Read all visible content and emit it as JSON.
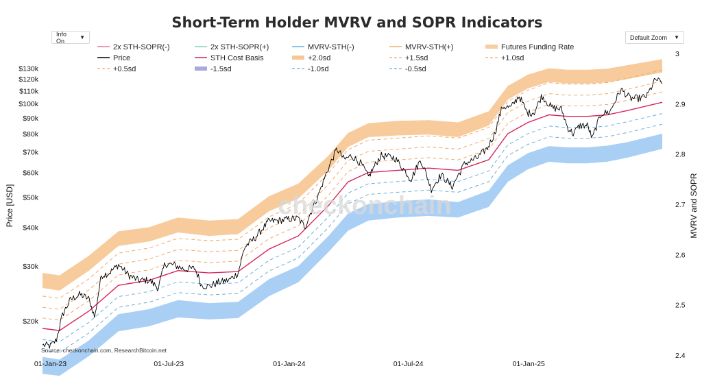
{
  "ui": {
    "info_button": "Info On",
    "zoom_button": "Default Zoom",
    "caret": "▼"
  },
  "chart_data": {
    "type": "line",
    "title": "Short-Term Holder MVRV and SOPR Indicators",
    "ylabel": "Price [USD]",
    "y2label": "MVRV and SOPR",
    "watermark": "checkonchain",
    "source": "Source: checkonchain.com, ResearchBitcoin.net",
    "yscale": "log",
    "ylim": [
      15500,
      145000
    ],
    "y2lim": [
      2.4,
      3.0
    ],
    "y_ticks": [
      {
        "value": 20000,
        "label": "$20k"
      },
      {
        "value": 30000,
        "label": "$30k"
      },
      {
        "value": 40000,
        "label": "$40k"
      },
      {
        "value": 50000,
        "label": "$50k"
      },
      {
        "value": 60000,
        "label": "$60k"
      },
      {
        "value": 70000,
        "label": "$70k"
      },
      {
        "value": 80000,
        "label": "$80k"
      },
      {
        "value": 90000,
        "label": "$90k"
      },
      {
        "value": 100000,
        "label": "$100k"
      },
      {
        "value": 110000,
        "label": "$110k"
      },
      {
        "value": 120000,
        "label": "$120k"
      },
      {
        "value": 130000,
        "label": "$130k"
      }
    ],
    "y2_ticks": [
      {
        "value": 2.4,
        "label": "2.4"
      },
      {
        "value": 2.5,
        "label": "2.5"
      },
      {
        "value": 2.6,
        "label": "2.6"
      },
      {
        "value": 2.7,
        "label": "2.7"
      },
      {
        "value": 2.8,
        "label": "2.8"
      },
      {
        "value": 2.9,
        "label": "2.9"
      },
      {
        "value": 3.0,
        "label": "3"
      }
    ],
    "x_range": [
      "2022-12-20",
      "2025-07-24"
    ],
    "x_ticks": [
      {
        "date": "2023-01-01",
        "label": "01-Jan-23"
      },
      {
        "date": "2023-07-01",
        "label": "01-Jul-23"
      },
      {
        "date": "2024-01-01",
        "label": "01-Jan-24"
      },
      {
        "date": "2024-07-01",
        "label": "01-Jul-24"
      },
      {
        "date": "2025-01-01",
        "label": "01-Jan-25"
      }
    ],
    "legend": [
      {
        "name": "2x STH-SOPR(-)",
        "color": "#e07a9a",
        "style": "line"
      },
      {
        "name": "2x STH-SOPR(+)",
        "color": "#7fd3c3",
        "style": "line"
      },
      {
        "name": "MVRV-STH(-)",
        "color": "#6aaedc",
        "style": "line"
      },
      {
        "name": "MVRV-STH(+)",
        "color": "#f0b070",
        "style": "line"
      },
      {
        "name": "Futures Funding Rate",
        "color": "#f5cfa0",
        "style": "thick"
      },
      {
        "name": "Price",
        "color": "#000000",
        "style": "line"
      },
      {
        "name": "STH Cost Basis",
        "color": "#d6245a",
        "style": "line"
      },
      {
        "name": "+2.0sd",
        "color": "#f5c796",
        "style": "thick"
      },
      {
        "name": "+1.5sd",
        "color": "#f0a868",
        "style": "dash"
      },
      {
        "name": "+1.0sd",
        "color": "#f0a868",
        "style": "dash"
      },
      {
        "name": "+0.5sd",
        "color": "#f0a868",
        "style": "dash"
      },
      {
        "name": "-1.5sd",
        "color": "#a7a9e0",
        "style": "thick"
      },
      {
        "name": "-1.0sd",
        "color": "#6aaedc",
        "style": "dash"
      },
      {
        "name": "-0.5sd",
        "color": "#6aaedc",
        "style": "dash"
      }
    ],
    "series": [
      {
        "name": "Price",
        "dates": [
          "2022-12-20",
          "2023-01-01",
          "2023-01-10",
          "2023-01-20",
          "2023-02-01",
          "2023-02-15",
          "2023-03-01",
          "2023-03-10",
          "2023-03-20",
          "2023-04-01",
          "2023-04-15",
          "2023-05-01",
          "2023-05-15",
          "2023-06-01",
          "2023-06-15",
          "2023-06-25",
          "2023-07-10",
          "2023-07-25",
          "2023-08-10",
          "2023-08-20",
          "2023-09-01",
          "2023-09-15",
          "2023-10-01",
          "2023-10-15",
          "2023-10-25",
          "2023-11-10",
          "2023-12-01",
          "2023-12-15",
          "2024-01-01",
          "2024-01-15",
          "2024-01-25",
          "2024-02-15",
          "2024-03-01",
          "2024-03-14",
          "2024-03-25",
          "2024-04-05",
          "2024-04-20",
          "2024-05-01",
          "2024-05-20",
          "2024-06-10",
          "2024-06-25",
          "2024-07-05",
          "2024-07-20",
          "2024-08-05",
          "2024-08-20",
          "2024-09-06",
          "2024-09-25",
          "2024-10-15",
          "2024-10-30",
          "2024-11-10",
          "2024-11-22",
          "2024-12-05",
          "2024-12-17",
          "2024-12-30",
          "2025-01-10",
          "2025-01-21",
          "2025-02-05",
          "2025-02-20",
          "2025-03-01",
          "2025-03-10",
          "2025-03-20",
          "2025-04-01",
          "2025-04-08",
          "2025-04-22",
          "2025-05-05",
          "2025-05-22",
          "2025-06-05",
          "2025-06-20",
          "2025-07-01",
          "2025-07-14",
          "2025-07-24"
        ],
        "values": [
          16700,
          16600,
          17300,
          21000,
          23400,
          24300,
          23500,
          20400,
          28000,
          28500,
          30300,
          28000,
          27000,
          27000,
          25500,
          30500,
          30200,
          29300,
          29500,
          26000,
          25800,
          26600,
          27000,
          28500,
          34500,
          37000,
          41800,
          42000,
          42500,
          42700,
          40000,
          51000,
          62000,
          71500,
          66000,
          68000,
          64000,
          58000,
          68000,
          67000,
          61000,
          57000,
          66000,
          53000,
          59000,
          54000,
          64000,
          67000,
          72000,
          80000,
          98000,
          97000,
          106000,
          93000,
          94000,
          106000,
          97000,
          96000,
          84000,
          80000,
          85000,
          85000,
          77000,
          93000,
          94000,
          111000,
          104000,
          104000,
          106000,
          120000,
          116000
        ]
      },
      {
        "name": "STH Cost Basis",
        "dates": [
          "2022-12-20",
          "2023-01-15",
          "2023-03-01",
          "2023-04-15",
          "2023-06-01",
          "2023-07-15",
          "2023-09-01",
          "2023-10-15",
          "2023-12-01",
          "2024-01-15",
          "2024-03-01",
          "2024-03-31",
          "2024-05-01",
          "2024-06-15",
          "2024-08-01",
          "2024-09-15",
          "2024-11-01",
          "2024-11-30",
          "2024-12-31",
          "2025-02-01",
          "2025-03-01",
          "2025-04-01",
          "2025-05-01",
          "2025-06-01",
          "2025-07-24"
        ],
        "values": [
          18900,
          18600,
          21500,
          26000,
          27000,
          29000,
          28500,
          28800,
          34000,
          37500,
          47000,
          56000,
          60000,
          61000,
          62000,
          61000,
          66000,
          80000,
          87000,
          92000,
          91000,
          91000,
          92000,
          95000,
          101000
        ]
      },
      {
        "name": "+2.0sd band",
        "dates": [
          "2022-12-20",
          "2023-01-15",
          "2023-03-01",
          "2023-04-15",
          "2023-06-01",
          "2023-07-15",
          "2023-09-01",
          "2023-10-15",
          "2023-12-01",
          "2024-01-15",
          "2024-03-01",
          "2024-03-31",
          "2024-05-01",
          "2024-06-15",
          "2024-08-01",
          "2024-09-15",
          "2024-11-01",
          "2024-11-30",
          "2024-12-31",
          "2025-02-01",
          "2025-03-01",
          "2025-04-01",
          "2025-05-01",
          "2025-06-01",
          "2025-07-24"
        ],
        "lower": [
          25500,
          25000,
          29000,
          34800,
          36000,
          38500,
          37500,
          38000,
          45000,
          49500,
          61000,
          72500,
          78000,
          79000,
          79500,
          78000,
          85000,
          103000,
          112000,
          117500,
          116000,
          116000,
          117000,
          120000,
          126000
        ],
        "upper": [
          28500,
          28000,
          32400,
          38800,
          40000,
          43000,
          42000,
          42500,
          50300,
          55300,
          68000,
          80500,
          86500,
          88000,
          88500,
          87000,
          94500,
          114000,
          124000,
          130000,
          128500,
          128500,
          129500,
          133000,
          139000
        ]
      },
      {
        "name": "-1.5sd band",
        "dates": [
          "2022-12-20",
          "2023-01-15",
          "2023-03-01",
          "2023-04-15",
          "2023-06-01",
          "2023-07-15",
          "2023-09-01",
          "2023-10-15",
          "2023-12-01",
          "2024-01-15",
          "2024-03-01",
          "2024-03-31",
          "2024-05-01",
          "2024-06-15",
          "2024-08-01",
          "2024-09-15",
          "2024-11-01",
          "2024-11-30",
          "2024-12-31",
          "2025-02-01",
          "2025-03-01",
          "2025-04-01",
          "2025-05-01",
          "2025-06-01",
          "2025-07-24"
        ],
        "lower": [
          13500,
          13300,
          15400,
          18500,
          19200,
          20500,
          20200,
          20400,
          24000,
          26600,
          33300,
          39000,
          42000,
          43000,
          43500,
          43000,
          46500,
          56000,
          61500,
          65000,
          64200,
          64200,
          65000,
          67000,
          71500
        ],
        "upper": [
          15300,
          15000,
          17300,
          21000,
          21800,
          23300,
          22800,
          23000,
          27200,
          30000,
          37500,
          44300,
          47500,
          48500,
          49200,
          48200,
          52500,
          63300,
          69300,
          73000,
          72300,
          72300,
          73200,
          75200,
          80000
        ]
      }
    ],
    "sd_line_multipliers": [
      {
        "name": "+1.5sd",
        "factor": 1.27
      },
      {
        "name": "+1.0sd",
        "factor": 1.17
      },
      {
        "name": "+0.5sd",
        "factor": 1.08
      },
      {
        "name": "-0.5sd",
        "factor": 0.92
      },
      {
        "name": "-1.0sd",
        "factor": 0.85
      }
    ]
  }
}
